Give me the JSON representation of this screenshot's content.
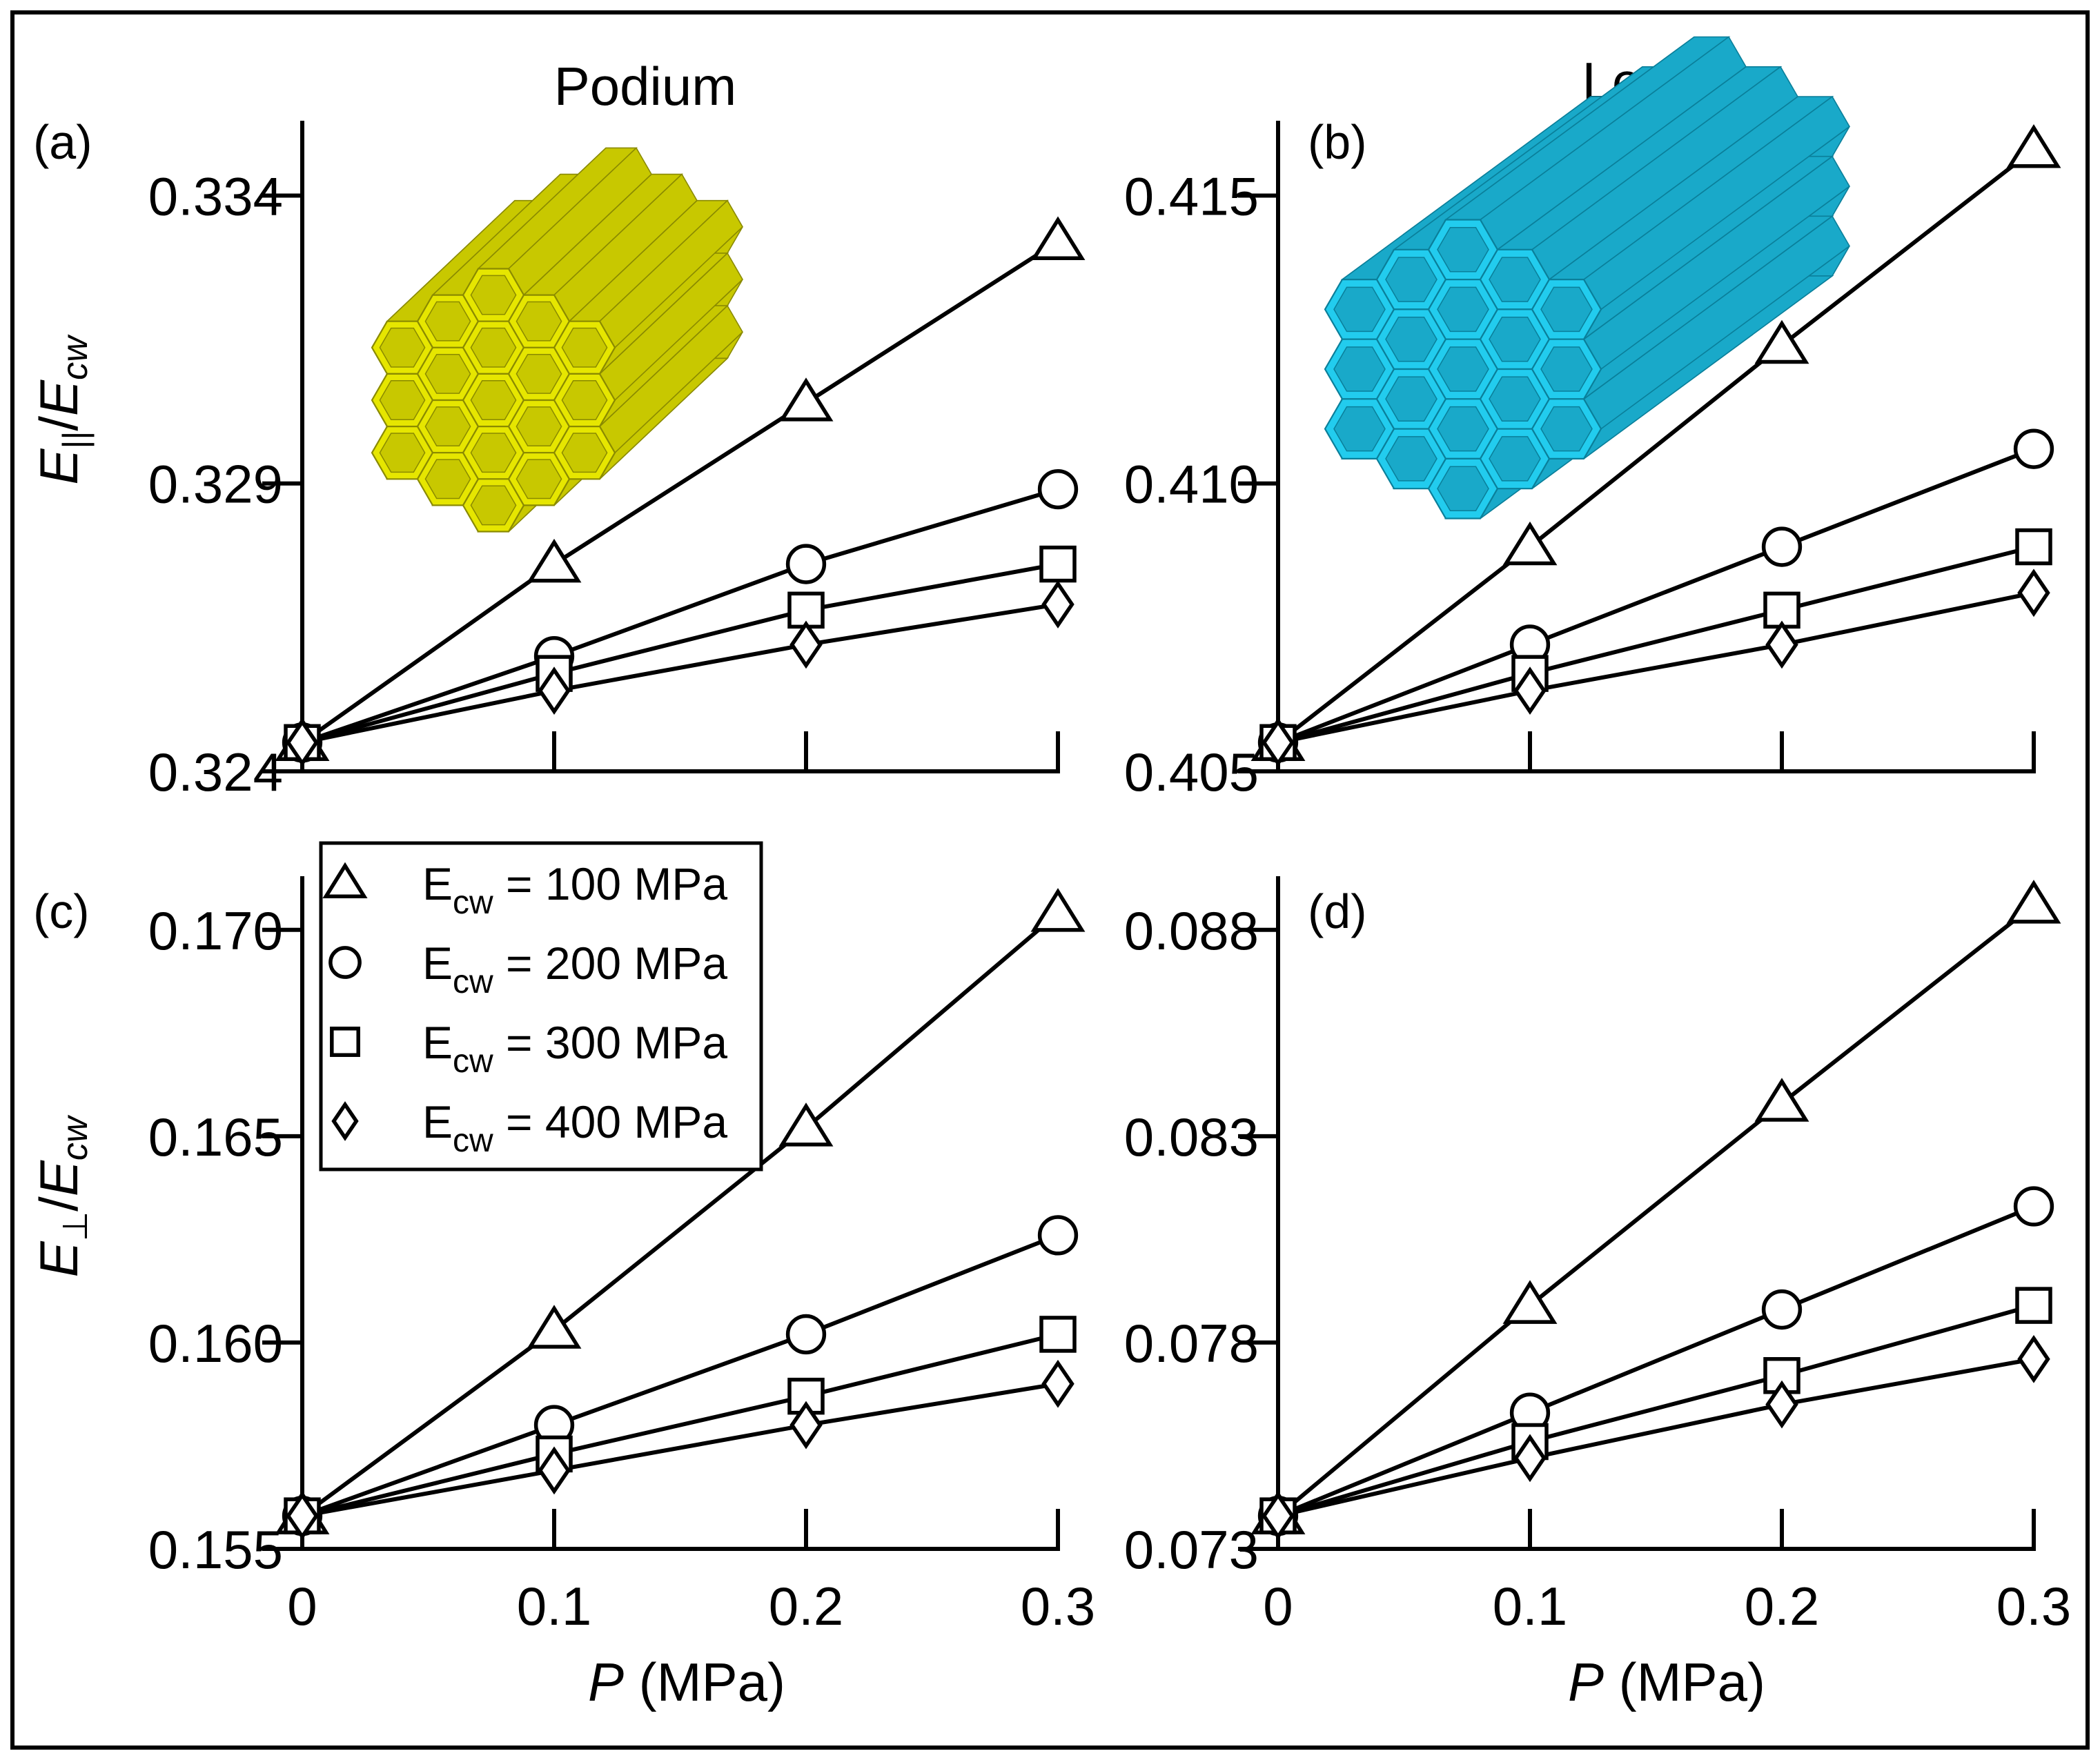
{
  "column_titles": [
    "Podium",
    "Lever"
  ],
  "x_axis_label": {
    "var": "P",
    "unit": " (MPa)"
  },
  "y_axis_labels": {
    "top": {
      "base": "E",
      "sub": "||",
      "denom": "E",
      "denom_sub": "cw"
    },
    "bottom": {
      "base": "E",
      "sub": "⊥",
      "denom": "E",
      "denom_sub": "cw"
    }
  },
  "legend": [
    {
      "marker": "triangle",
      "prefix": "E",
      "sub": "cw",
      "text": " = 100 MPa"
    },
    {
      "marker": "circle",
      "prefix": "E",
      "sub": "cw",
      "text": " = 200 MPa"
    },
    {
      "marker": "square",
      "prefix": "E",
      "sub": "cw",
      "text": " = 300 MPa"
    },
    {
      "marker": "diamond",
      "prefix": "E",
      "sub": "cw",
      "text": " = 400 MPa"
    }
  ],
  "insets": {
    "a": {
      "color": "#e6e600",
      "edge": "#8a8a00"
    },
    "b": {
      "color": "#22ccee",
      "edge": "#0a7f9a"
    }
  },
  "chart_data": [
    {
      "panel": "(a)",
      "type": "line",
      "x": [
        0,
        0.1,
        0.2,
        0.3
      ],
      "xticks": [
        "0",
        "0.1",
        "0.2",
        "0.3"
      ],
      "show_xticks": false,
      "xlim": [
        0,
        0.3
      ],
      "ylim": [
        0.324,
        0.3353
      ],
      "yticks": [
        0.324,
        0.329,
        0.334
      ],
      "ytick_labels": [
        "0.324",
        "0.329",
        "0.334"
      ],
      "series": [
        {
          "marker": "triangle",
          "values": [
            0.3245,
            0.3276,
            0.3304,
            0.3332
          ]
        },
        {
          "marker": "circle",
          "values": [
            0.3245,
            0.326,
            0.3276,
            0.3289
          ]
        },
        {
          "marker": "square",
          "values": [
            0.3245,
            0.3257,
            0.3268,
            0.3276
          ]
        },
        {
          "marker": "diamond",
          "values": [
            0.3245,
            0.3254,
            0.3262,
            0.3269
          ]
        }
      ]
    },
    {
      "panel": "(b)",
      "type": "line",
      "x": [
        0,
        0.1,
        0.2,
        0.3
      ],
      "xticks": [
        "0",
        "0.1",
        "0.2",
        "0.3"
      ],
      "show_xticks": false,
      "xlim": [
        0,
        0.3
      ],
      "ylim": [
        0.405,
        0.4163
      ],
      "yticks": [
        0.405,
        0.41,
        0.415
      ],
      "ytick_labels": [
        "0.405",
        "0.410",
        "0.415"
      ],
      "series": [
        {
          "marker": "triangle",
          "values": [
            0.4055,
            0.4089,
            0.4124,
            0.4158
          ]
        },
        {
          "marker": "circle",
          "values": [
            0.4055,
            0.4072,
            0.4089,
            0.4106
          ]
        },
        {
          "marker": "square",
          "values": [
            0.4055,
            0.4067,
            0.4078,
            0.4089
          ]
        },
        {
          "marker": "diamond",
          "values": [
            0.4055,
            0.4064,
            0.4072,
            0.4081
          ]
        }
      ]
    },
    {
      "panel": "(c)",
      "type": "line",
      "x": [
        0,
        0.1,
        0.2,
        0.3
      ],
      "xticks": [
        "0",
        "0.1",
        "0.2",
        "0.3"
      ],
      "show_xticks": true,
      "xlim": [
        0,
        0.3
      ],
      "ylim": [
        0.155,
        0.1713
      ],
      "yticks": [
        0.155,
        0.16,
        0.165,
        0.17
      ],
      "ytick_labels": [
        "0.155",
        "0.160",
        "0.165",
        "0.170"
      ],
      "series": [
        {
          "marker": "triangle",
          "values": [
            0.1558,
            0.1603,
            0.1652,
            0.1704
          ]
        },
        {
          "marker": "circle",
          "values": [
            0.1558,
            0.158,
            0.1602,
            0.1626
          ]
        },
        {
          "marker": "square",
          "values": [
            0.1558,
            0.1573,
            0.1587,
            0.1602
          ]
        },
        {
          "marker": "diamond",
          "values": [
            0.1558,
            0.1569,
            0.158,
            0.159
          ]
        }
      ]
    },
    {
      "panel": "(d)",
      "type": "line",
      "x": [
        0,
        0.1,
        0.2,
        0.3
      ],
      "xticks": [
        "0",
        "0.1",
        "0.2",
        "0.3"
      ],
      "show_xticks": true,
      "xlim": [
        0,
        0.3
      ],
      "ylim": [
        0.073,
        0.0893
      ],
      "yticks": [
        0.073,
        0.078,
        0.083,
        0.088
      ],
      "ytick_labels": [
        "0.073",
        "0.078",
        "0.083",
        "0.088"
      ],
      "series": [
        {
          "marker": "triangle",
          "values": [
            0.0738,
            0.0789,
            0.0838,
            0.0886
          ]
        },
        {
          "marker": "circle",
          "values": [
            0.0738,
            0.0763,
            0.0788,
            0.0813
          ]
        },
        {
          "marker": "square",
          "values": [
            0.0738,
            0.0756,
            0.0772,
            0.0789
          ]
        },
        {
          "marker": "diamond",
          "values": [
            0.0738,
            0.0752,
            0.0765,
            0.0776
          ]
        }
      ]
    }
  ]
}
